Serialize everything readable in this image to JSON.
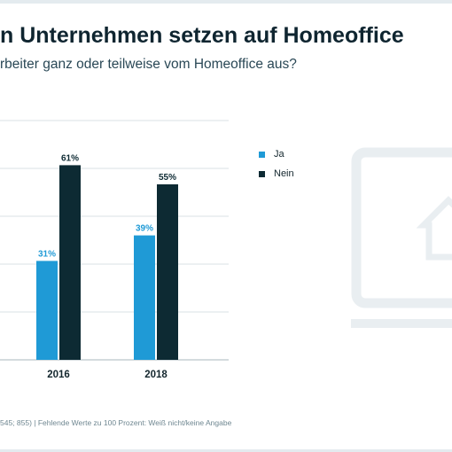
{
  "title": "n Unternehmen setzen auf Homeoffice",
  "subtitle": "rbeiter ganz oder teilweise vom Homeoffice aus?",
  "footnote": "545; 855) | Fehlende Werte zu 100 Prozent: Weiß nicht/keine Angabe",
  "colors": {
    "ja": "#1f9ad6",
    "nein": "#0d2a33",
    "grid": "#d9e1e5",
    "deco": "#e9eef1"
  },
  "legend": [
    {
      "label": "Ja",
      "color": "#1f9ad6"
    },
    {
      "label": "Nein",
      "color": "#0d2a33"
    }
  ],
  "decor_icon": "home-office-laptop-icon",
  "chart_data": {
    "type": "bar",
    "categories": [
      "2016",
      "2018"
    ],
    "series": [
      {
        "name": "Ja",
        "values": [
          31,
          39
        ],
        "labels": [
          "31%",
          "39%"
        ]
      },
      {
        "name": "Nein",
        "values": [
          61,
          55
        ],
        "labels": [
          "61%",
          "55%"
        ]
      }
    ],
    "title": "n Unternehmen setzen auf Homeoffice",
    "ylim": [
      0,
      75
    ],
    "grid": true,
    "legend_position": "right"
  }
}
